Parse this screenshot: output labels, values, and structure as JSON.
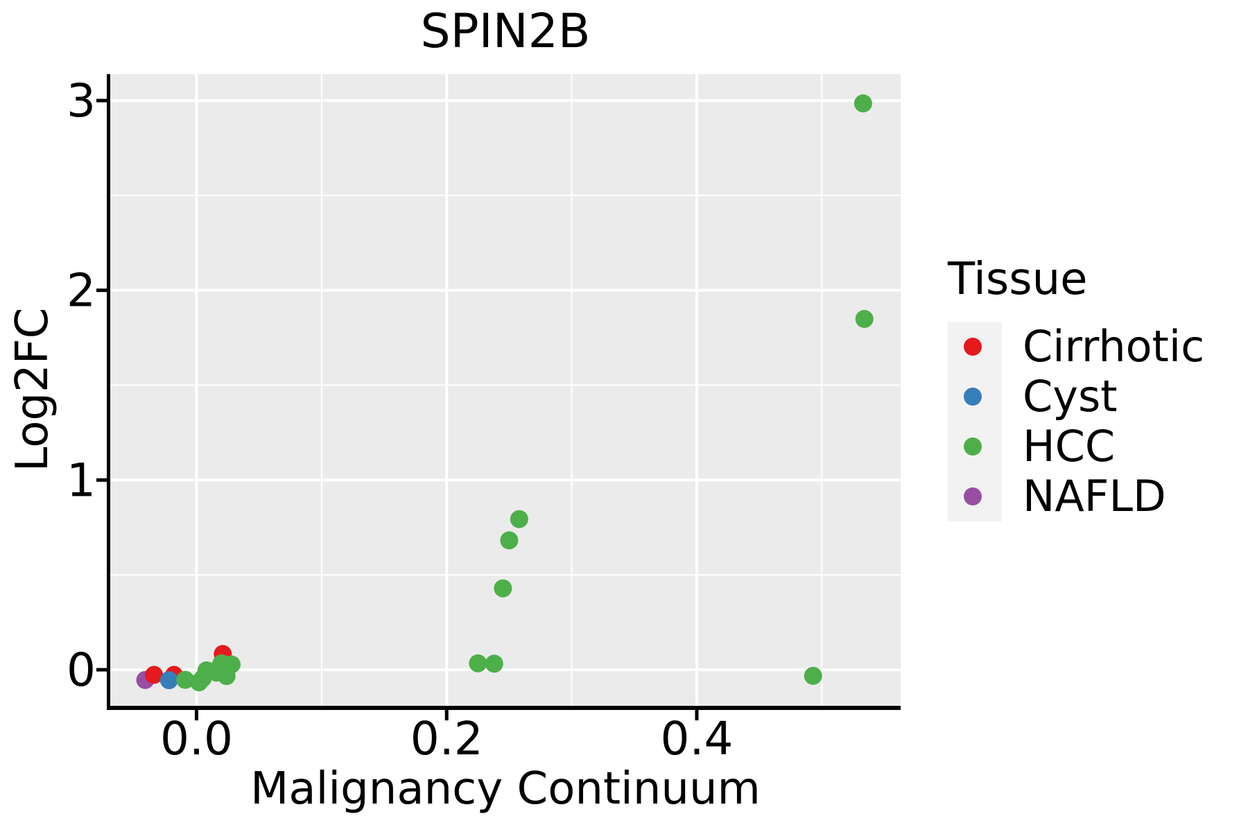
{
  "chart_data": {
    "type": "scatter",
    "title": "SPIN2B",
    "xlabel": "Malignancy Continuum",
    "ylabel": "Log2FC",
    "x_axis": {
      "ticks": [
        0.0,
        0.2,
        0.4
      ],
      "tick_labels": [
        "0.0",
        "0.2",
        "0.4"
      ],
      "minor_gridlines": [
        0.1,
        0.3,
        0.5
      ],
      "lim": [
        -0.069,
        0.563
      ]
    },
    "y_axis": {
      "ticks": [
        0,
        1,
        2,
        3
      ],
      "tick_labels": [
        "0",
        "1",
        "2",
        "3"
      ],
      "minor_gridlines": [
        0.5,
        1.5,
        2.5
      ],
      "lim": [
        -0.19,
        3.139
      ]
    },
    "grid": true,
    "panel_bg": "#EBEBEB",
    "gridline_color": "#FFFFFF",
    "legend": {
      "title": "Tissue",
      "position": "right",
      "entries": [
        {
          "label": "Cirrhotic",
          "color": "#E41A1C"
        },
        {
          "label": "Cyst",
          "color": "#377EB8"
        },
        {
          "label": "HCC",
          "color": "#4DAF4A"
        },
        {
          "label": "NAFLD",
          "color": "#984EA3"
        }
      ]
    },
    "draw_order": [
      "NAFLD",
      "Cirrhotic",
      "Cyst",
      "HCC"
    ],
    "series": [
      {
        "name": "Cirrhotic",
        "color": "#E41A1C",
        "points": [
          [
            -0.034,
            -0.027
          ],
          [
            -0.018,
            -0.027
          ],
          [
            0.021,
            0.083
          ]
        ]
      },
      {
        "name": "Cyst",
        "color": "#377EB8",
        "points": [
          [
            -0.022,
            -0.055
          ]
        ]
      },
      {
        "name": "HCC",
        "color": "#4DAF4A",
        "points": [
          [
            -0.009,
            -0.053
          ],
          [
            0.002,
            -0.066
          ],
          [
            0.005,
            -0.045
          ],
          [
            0.008,
            -0.003
          ],
          [
            0.016,
            -0.015
          ],
          [
            0.018,
            0.01
          ],
          [
            0.02,
            0.034
          ],
          [
            0.028,
            0.028
          ],
          [
            0.024,
            -0.033
          ],
          [
            0.225,
            0.034
          ],
          [
            0.238,
            0.032
          ],
          [
            0.245,
            0.429
          ],
          [
            0.25,
            0.682
          ],
          [
            0.258,
            0.794
          ],
          [
            0.493,
            -0.032
          ],
          [
            0.533,
            2.985
          ],
          [
            0.534,
            1.849
          ]
        ]
      },
      {
        "name": "NAFLD",
        "color": "#984EA3",
        "points": [
          [
            -0.041,
            -0.054
          ]
        ]
      }
    ]
  }
}
